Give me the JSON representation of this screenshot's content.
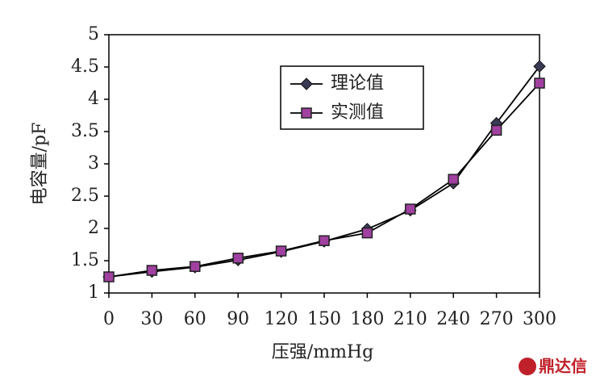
{
  "chart_data": {
    "type": "line",
    "x_label": "压强/mmHg",
    "y_label": "电容量/pF",
    "x": [
      0,
      30,
      60,
      90,
      120,
      150,
      180,
      210,
      240,
      270,
      300
    ],
    "series": [
      {
        "name": "理论值",
        "color": "#3a3a55",
        "marker": "diamond",
        "values": [
          1.25,
          1.33,
          1.4,
          1.51,
          1.64,
          1.8,
          1.99,
          2.28,
          2.7,
          3.63,
          4.51
        ]
      },
      {
        "name": "实测值",
        "color": "#a040a0",
        "marker": "square",
        "values": [
          1.25,
          1.35,
          1.41,
          1.54,
          1.65,
          1.81,
          1.93,
          2.3,
          2.76,
          3.52,
          4.25
        ]
      }
    ],
    "xlim": [
      0,
      300
    ],
    "xticks": [
      0,
      30,
      60,
      90,
      120,
      150,
      180,
      210,
      240,
      270,
      300
    ],
    "ylim": [
      1,
      5
    ],
    "yticks": [
      1,
      1.5,
      2,
      2.5,
      3,
      3.5,
      4,
      4.5,
      5
    ],
    "grid": false,
    "legend": "upper center",
    "watermark": "鼎达信"
  }
}
